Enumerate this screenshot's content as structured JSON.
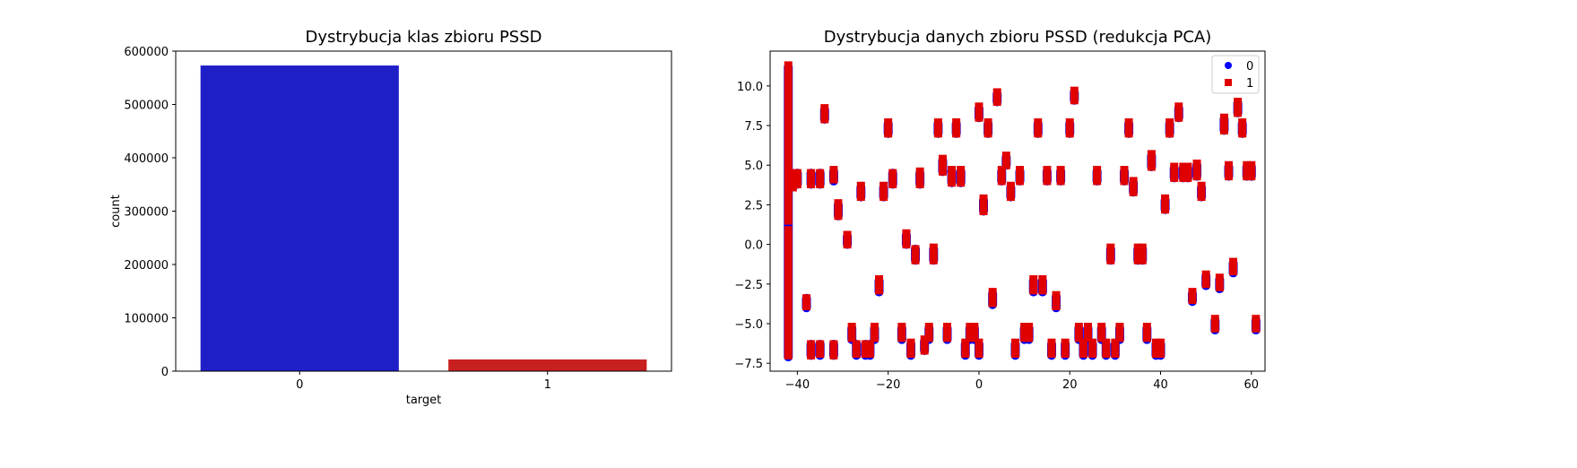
{
  "colors": {
    "class0": "#1f1fc8",
    "class1": "#c81f1f",
    "scatter0": "#0000ff",
    "scatter1": "#e00000"
  },
  "chart_data": [
    {
      "type": "bar",
      "title": "Dystrybucja klas zbioru PSSD",
      "xlabel": "target",
      "ylabel": "count",
      "categories": [
        "0",
        "1"
      ],
      "values": [
        573000,
        22000
      ],
      "ylim": [
        0,
        600000
      ],
      "yticks": [
        0,
        100000,
        200000,
        300000,
        400000,
        500000,
        600000
      ],
      "grid": false
    },
    {
      "type": "scatter",
      "title": "Dystrybucja danych zbioru PSSD (redukcja PCA)",
      "xlabel": "",
      "ylabel": "",
      "xlim": [
        -46,
        63
      ],
      "ylim": [
        -8.0,
        12.2
      ],
      "xticks": [
        -40,
        -20,
        0,
        20,
        40,
        60
      ],
      "yticks": [
        -7.5,
        -5.0,
        -2.5,
        0.0,
        2.5,
        5.0,
        7.5,
        10.0
      ],
      "legend": {
        "position": "top-right",
        "entries": [
          "0",
          "1"
        ]
      },
      "grid": false,
      "series": [
        {
          "name": "0",
          "marker": "circle",
          "clusters": [
            [
              -42,
              1.0,
              11.2
            ],
            [
              -42,
              -7.1,
              1.0
            ],
            [
              -40,
              3.8,
              4.5
            ],
            [
              -38,
              -4.0,
              -3.4
            ],
            [
              -37,
              -7.0,
              -6.3
            ],
            [
              -37,
              3.8,
              4.5
            ],
            [
              -35,
              -7.0,
              -6.3
            ],
            [
              -35,
              3.8,
              4.5
            ],
            [
              -34,
              7.9,
              8.5
            ],
            [
              -32,
              -7.0,
              -6.3
            ],
            [
              -32,
              4.0,
              4.6
            ],
            [
              -31,
              1.8,
              2.5
            ],
            [
              -29,
              0.0,
              0.5
            ],
            [
              -28,
              -6.0,
              -5.3
            ],
            [
              -27,
              -7.0,
              -6.3
            ],
            [
              -26,
              3.0,
              3.6
            ],
            [
              -25,
              -7.0,
              -6.3
            ],
            [
              -24,
              -7.0,
              -6.3
            ],
            [
              -23,
              -6.0,
              -5.3
            ],
            [
              -22,
              -3.0,
              -2.3
            ],
            [
              -21,
              3.0,
              3.6
            ],
            [
              -20,
              7.0,
              7.6
            ],
            [
              -19,
              3.8,
              4.5
            ],
            [
              -17,
              -6.0,
              -5.3
            ],
            [
              -16,
              0.0,
              0.6
            ],
            [
              -15,
              -7.0,
              -6.3
            ],
            [
              -14,
              -1.0,
              -0.3
            ],
            [
              -13,
              3.8,
              4.5
            ],
            [
              -12,
              -6.7,
              -6.1
            ],
            [
              -11,
              -6.0,
              -5.3
            ],
            [
              -10,
              -1.0,
              -0.3
            ],
            [
              -9,
              7.0,
              7.6
            ],
            [
              -8,
              4.6,
              5.3
            ],
            [
              -7,
              -6.0,
              -5.3
            ],
            [
              -6,
              3.9,
              4.6
            ],
            [
              -5,
              7.0,
              7.6
            ],
            [
              -4,
              3.9,
              4.6
            ],
            [
              -3,
              -7.0,
              -6.3
            ],
            [
              -2,
              -6.0,
              -5.3
            ],
            [
              -1,
              -6.0,
              -5.3
            ],
            [
              0,
              8.0,
              8.6
            ],
            [
              0,
              -7.0,
              -6.3
            ],
            [
              1,
              2.1,
              2.8
            ],
            [
              2,
              7.0,
              7.6
            ],
            [
              3,
              -3.8,
              -3.1
            ],
            [
              4,
              9.0,
              9.5
            ],
            [
              5,
              4.0,
              4.6
            ],
            [
              6,
              5.0,
              5.5
            ],
            [
              7,
              3.0,
              3.6
            ],
            [
              8,
              -7.0,
              -6.3
            ],
            [
              9,
              4.0,
              4.6
            ],
            [
              10,
              -6.0,
              -5.3
            ],
            [
              11,
              -6.0,
              -5.3
            ],
            [
              12,
              -3.0,
              -2.3
            ],
            [
              13,
              7.0,
              7.6
            ],
            [
              14,
              -3.0,
              -2.3
            ],
            [
              15,
              4.0,
              4.6
            ],
            [
              16,
              -7.0,
              -6.3
            ],
            [
              17,
              -4.0,
              -3.3
            ],
            [
              18,
              4.0,
              4.6
            ],
            [
              19,
              -7.0,
              -6.3
            ],
            [
              20,
              7.0,
              7.6
            ],
            [
              21,
              9.1,
              9.6
            ],
            [
              22,
              -6.0,
              -5.3
            ],
            [
              23,
              -7.0,
              -6.3
            ],
            [
              24,
              -6.0,
              -5.3
            ],
            [
              25,
              -7.0,
              -6.3
            ],
            [
              26,
              4.0,
              4.6
            ],
            [
              27,
              -6.0,
              -5.3
            ],
            [
              28,
              -7.0,
              -6.3
            ],
            [
              29,
              -1.0,
              -0.3
            ],
            [
              30,
              -7.0,
              -6.3
            ],
            [
              31,
              -6.0,
              -5.3
            ],
            [
              32,
              4.0,
              4.6
            ],
            [
              33,
              7.0,
              7.6
            ],
            [
              34,
              3.3,
              3.9
            ],
            [
              35,
              -1.0,
              -0.3
            ],
            [
              36,
              -1.0,
              -0.3
            ],
            [
              37,
              -6.0,
              -5.3
            ],
            [
              38,
              4.9,
              5.6
            ],
            [
              39,
              -7.0,
              -6.3
            ],
            [
              40,
              -7.0,
              -6.3
            ],
            [
              41,
              2.2,
              2.8
            ],
            [
              42,
              7.0,
              7.6
            ],
            [
              43,
              4.2,
              4.8
            ],
            [
              44,
              8.0,
              8.6
            ],
            [
              45,
              4.2,
              4.8
            ],
            [
              46,
              4.2,
              4.8
            ],
            [
              47,
              -3.6,
              -3.1
            ],
            [
              48,
              4.3,
              5.0
            ],
            [
              49,
              3.0,
              3.6
            ],
            [
              50,
              -2.6,
              -2.0
            ],
            [
              52,
              -5.4,
              -4.8
            ],
            [
              53,
              -2.8,
              -2.2
            ],
            [
              54,
              7.2,
              7.9
            ],
            [
              55,
              4.3,
              4.9
            ],
            [
              56,
              -1.8,
              -1.2
            ],
            [
              57,
              8.3,
              8.9
            ],
            [
              58,
              7.0,
              7.6
            ],
            [
              59,
              4.3,
              4.9
            ],
            [
              60,
              4.3,
              4.9
            ],
            [
              61,
              -5.4,
              -4.8
            ]
          ]
        },
        {
          "name": "1",
          "marker": "square",
          "clusters": [
            [
              -42,
              1.5,
              11.3
            ],
            [
              -42,
              -7.0,
              0.9
            ],
            [
              -41,
              3.6,
              4.5
            ],
            [
              -40,
              3.8,
              4.5
            ],
            [
              -38,
              -3.9,
              -3.4
            ],
            [
              -37,
              -7.0,
              -6.3
            ],
            [
              -37,
              3.8,
              4.5
            ],
            [
              -35,
              -6.9,
              -6.3
            ],
            [
              -35,
              3.8,
              4.5
            ],
            [
              -34,
              7.9,
              8.6
            ],
            [
              -32,
              -7.0,
              -6.3
            ],
            [
              -32,
              4.1,
              4.7
            ],
            [
              -31,
              1.8,
              2.6
            ],
            [
              -29,
              0.0,
              0.6
            ],
            [
              -28,
              -5.9,
              -5.2
            ],
            [
              -27,
              -6.9,
              -6.3
            ],
            [
              -26,
              3.0,
              3.7
            ],
            [
              -25,
              -6.9,
              -6.3
            ],
            [
              -24,
              -6.9,
              -6.3
            ],
            [
              -23,
              -5.9,
              -5.2
            ],
            [
              -22,
              -2.9,
              -2.2
            ],
            [
              -21,
              3.0,
              3.7
            ],
            [
              -20,
              7.0,
              7.7
            ],
            [
              -19,
              3.8,
              4.5
            ],
            [
              -17,
              -5.9,
              -5.2
            ],
            [
              -16,
              0.0,
              0.7
            ],
            [
              -15,
              -6.9,
              -6.2
            ],
            [
              -14,
              -1.0,
              -0.3
            ],
            [
              -13,
              3.8,
              4.6
            ],
            [
              -12,
              -6.7,
              -6.0
            ],
            [
              -11,
              -5.9,
              -5.2
            ],
            [
              -10,
              -1.0,
              -0.2
            ],
            [
              -9,
              7.0,
              7.7
            ],
            [
              -8,
              4.6,
              5.4
            ],
            [
              -7,
              -5.9,
              -5.2
            ],
            [
              -6,
              3.9,
              4.7
            ],
            [
              -5,
              7.0,
              7.7
            ],
            [
              -4,
              3.9,
              4.7
            ],
            [
              -3,
              -6.9,
              -6.2
            ],
            [
              -2,
              -5.9,
              -5.2
            ],
            [
              -1,
              -5.9,
              -5.2
            ],
            [
              0,
              8.0,
              8.7
            ],
            [
              0,
              -6.9,
              -6.2
            ],
            [
              1,
              2.1,
              2.9
            ],
            [
              2,
              7.0,
              7.7
            ],
            [
              3,
              -3.7,
              -3.0
            ],
            [
              4,
              9.0,
              9.6
            ],
            [
              5,
              4.0,
              4.7
            ],
            [
              6,
              5.0,
              5.6
            ],
            [
              7,
              3.0,
              3.7
            ],
            [
              8,
              -6.9,
              -6.2
            ],
            [
              9,
              4.0,
              4.7
            ],
            [
              10,
              -5.9,
              -5.2
            ],
            [
              11,
              -5.9,
              -5.2
            ],
            [
              12,
              -2.9,
              -2.2
            ],
            [
              13,
              7.0,
              7.7
            ],
            [
              14,
              -2.9,
              -2.2
            ],
            [
              15,
              4.0,
              4.7
            ],
            [
              16,
              -6.9,
              -6.2
            ],
            [
              17,
              -3.9,
              -3.2
            ],
            [
              18,
              4.0,
              4.7
            ],
            [
              19,
              -6.9,
              -6.2
            ],
            [
              20,
              7.0,
              7.7
            ],
            [
              21,
              9.1,
              9.7
            ],
            [
              22,
              -5.9,
              -5.2
            ],
            [
              23,
              -6.9,
              -6.2
            ],
            [
              24,
              -5.9,
              -5.2
            ],
            [
              25,
              -6.9,
              -6.2
            ],
            [
              26,
              4.0,
              4.7
            ],
            [
              27,
              -5.9,
              -5.2
            ],
            [
              28,
              -6.9,
              -6.2
            ],
            [
              29,
              -1.0,
              -0.2
            ],
            [
              30,
              -6.9,
              -6.2
            ],
            [
              31,
              -5.9,
              -5.2
            ],
            [
              32,
              4.0,
              4.7
            ],
            [
              33,
              7.0,
              7.7
            ],
            [
              34,
              3.3,
              4.0
            ],
            [
              35,
              -1.0,
              -0.2
            ],
            [
              36,
              -1.0,
              -0.2
            ],
            [
              37,
              -5.9,
              -5.2
            ],
            [
              38,
              4.9,
              5.7
            ],
            [
              39,
              -6.9,
              -6.2
            ],
            [
              40,
              -6.9,
              -6.2
            ],
            [
              41,
              2.2,
              2.9
            ],
            [
              42,
              7.0,
              7.7
            ],
            [
              43,
              4.2,
              4.9
            ],
            [
              44,
              8.0,
              8.7
            ],
            [
              45,
              4.2,
              4.9
            ],
            [
              46,
              4.2,
              4.9
            ],
            [
              47,
              -3.5,
              -3.0
            ],
            [
              48,
              4.3,
              5.1
            ],
            [
              49,
              3.0,
              3.7
            ],
            [
              50,
              -2.5,
              -1.9
            ],
            [
              52,
              -5.3,
              -4.7
            ],
            [
              53,
              -2.7,
              -2.1
            ],
            [
              54,
              7.2,
              8.0
            ],
            [
              55,
              4.3,
              5.0
            ],
            [
              56,
              -1.7,
              -1.1
            ],
            [
              57,
              8.3,
              9.0
            ],
            [
              58,
              7.0,
              7.7
            ],
            [
              59,
              4.3,
              5.0
            ],
            [
              60,
              4.3,
              5.0
            ],
            [
              61,
              -5.3,
              -4.7
            ]
          ]
        }
      ]
    }
  ]
}
